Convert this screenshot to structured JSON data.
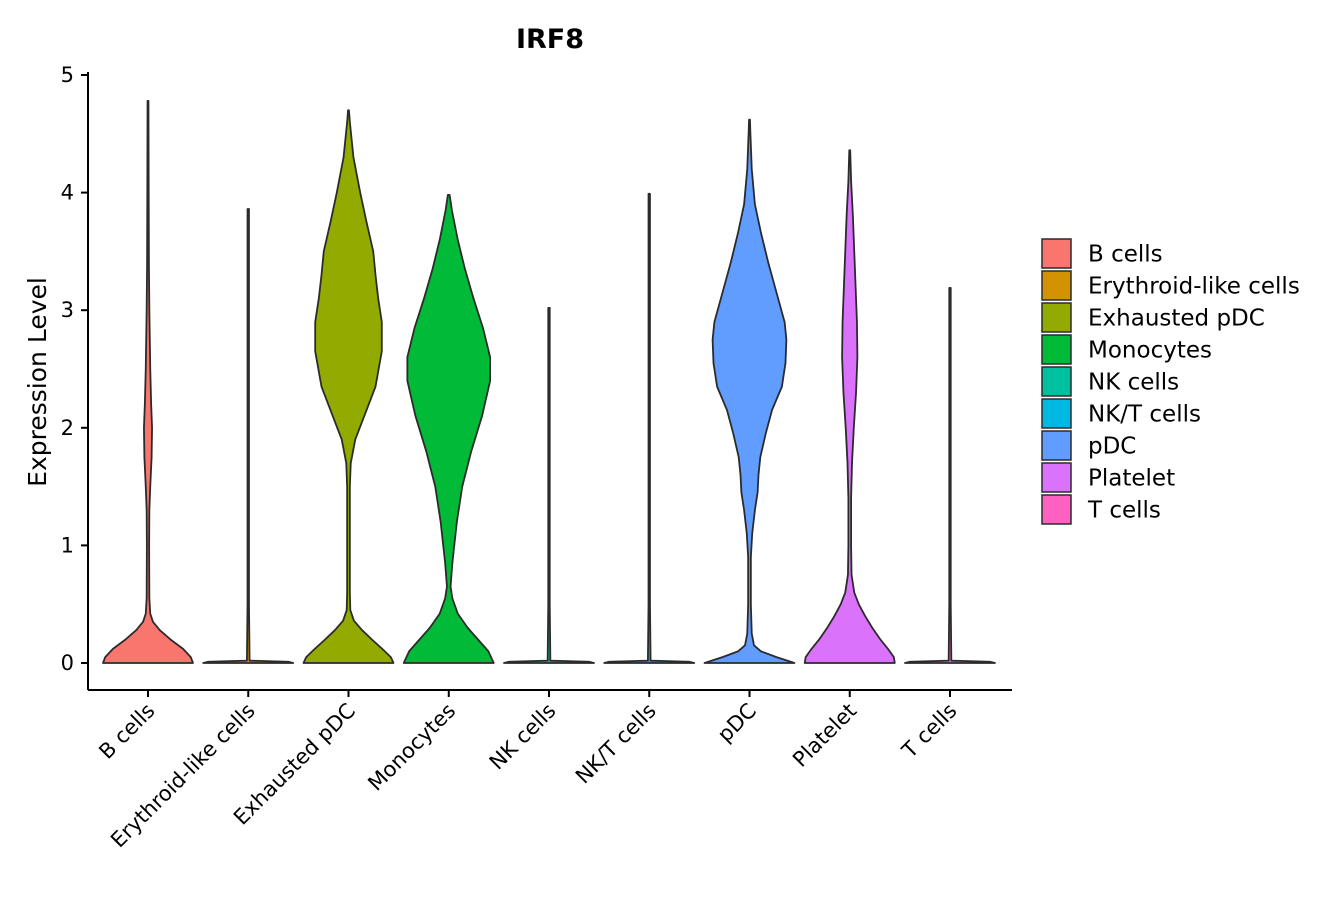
{
  "chart_data": {
    "type": "violin",
    "title": "IRF8",
    "xlabel": "",
    "ylabel": "Expression Level",
    "ylim": [
      0,
      5
    ],
    "yticks": [
      "0",
      "1",
      "2",
      "3",
      "4",
      "5"
    ],
    "categories": [
      "B cells",
      "Erythroid-like cells",
      "Exhausted pDC",
      "Monocytes",
      "NK cells",
      "NK/T cells",
      "pDC",
      "Platelet",
      "T cells"
    ],
    "colors": [
      "#F8766D",
      "#D39200",
      "#93AA00",
      "#00BA38",
      "#00C19F",
      "#00B9E3",
      "#619CFF",
      "#DB72FB",
      "#FF61C3"
    ],
    "legend": {
      "placement": "right",
      "entries": [
        "B cells",
        "Erythroid-like cells",
        "Exhausted pDC",
        "Monocytes",
        "NK cells",
        "NK/T cells",
        "pDC",
        "Platelet",
        "T cells"
      ]
    },
    "violins": [
      {
        "name": "B cells",
        "max": 4.78,
        "profile": [
          [
            0,
            1.0
          ],
          [
            0.05,
            0.95
          ],
          [
            0.12,
            0.78
          ],
          [
            0.2,
            0.5
          ],
          [
            0.28,
            0.26
          ],
          [
            0.35,
            0.11
          ],
          [
            0.42,
            0.05
          ],
          [
            0.55,
            0.03
          ],
          [
            1.0,
            0.025
          ],
          [
            1.3,
            0.03
          ],
          [
            1.5,
            0.05
          ],
          [
            1.75,
            0.08
          ],
          [
            2.0,
            0.09
          ],
          [
            2.2,
            0.07
          ],
          [
            2.5,
            0.05
          ],
          [
            3.0,
            0.03
          ],
          [
            3.4,
            0.02
          ],
          [
            4.0,
            0.015
          ],
          [
            4.78,
            0.01
          ]
        ]
      },
      {
        "name": "Erythroid-like cells",
        "max": 3.86,
        "profile": [
          [
            0,
            1.0
          ],
          [
            0.01,
            0.9
          ],
          [
            0.02,
            0.03
          ],
          [
            0.5,
            0.016
          ],
          [
            2.0,
            0.016
          ],
          [
            3.86,
            0.016
          ]
        ]
      },
      {
        "name": "Exhausted pDC",
        "max": 4.7,
        "profile": [
          [
            0,
            1.0
          ],
          [
            0.05,
            0.94
          ],
          [
            0.12,
            0.75
          ],
          [
            0.2,
            0.52
          ],
          [
            0.28,
            0.3
          ],
          [
            0.36,
            0.12
          ],
          [
            0.45,
            0.04
          ],
          [
            0.6,
            0.03
          ],
          [
            1.5,
            0.03
          ],
          [
            1.7,
            0.05
          ],
          [
            1.9,
            0.15
          ],
          [
            2.1,
            0.35
          ],
          [
            2.35,
            0.6
          ],
          [
            2.65,
            0.74
          ],
          [
            2.9,
            0.74
          ],
          [
            3.1,
            0.66
          ],
          [
            3.3,
            0.6
          ],
          [
            3.5,
            0.55
          ],
          [
            3.75,
            0.4
          ],
          [
            4.0,
            0.26
          ],
          [
            4.3,
            0.11
          ],
          [
            4.6,
            0.03
          ],
          [
            4.7,
            0.01
          ]
        ]
      },
      {
        "name": "Monocytes",
        "max": 3.98,
        "profile": [
          [
            0,
            1.0
          ],
          [
            0.1,
            0.88
          ],
          [
            0.2,
            0.65
          ],
          [
            0.3,
            0.42
          ],
          [
            0.42,
            0.2
          ],
          [
            0.55,
            0.08
          ],
          [
            0.65,
            0.04
          ],
          [
            0.85,
            0.08
          ],
          [
            1.2,
            0.18
          ],
          [
            1.5,
            0.3
          ],
          [
            1.8,
            0.5
          ],
          [
            2.1,
            0.74
          ],
          [
            2.4,
            0.92
          ],
          [
            2.6,
            0.92
          ],
          [
            2.85,
            0.76
          ],
          [
            3.1,
            0.55
          ],
          [
            3.35,
            0.36
          ],
          [
            3.6,
            0.2
          ],
          [
            3.85,
            0.07
          ],
          [
            3.98,
            0.02
          ]
        ]
      },
      {
        "name": "NK cells",
        "max": 3.02,
        "profile": [
          [
            0,
            1.0
          ],
          [
            0.01,
            0.9
          ],
          [
            0.02,
            0.03
          ],
          [
            0.5,
            0.016
          ],
          [
            2.0,
            0.016
          ],
          [
            3.02,
            0.016
          ]
        ]
      },
      {
        "name": "NK/T cells",
        "max": 3.99,
        "profile": [
          [
            0,
            1.0
          ],
          [
            0.01,
            0.9
          ],
          [
            0.02,
            0.03
          ],
          [
            0.5,
            0.016
          ],
          [
            2.0,
            0.016
          ],
          [
            3.99,
            0.016
          ]
        ]
      },
      {
        "name": "pDC",
        "max": 4.62,
        "profile": [
          [
            0,
            1.0
          ],
          [
            0.05,
            0.6
          ],
          [
            0.1,
            0.25
          ],
          [
            0.15,
            0.1
          ],
          [
            0.25,
            0.05
          ],
          [
            0.5,
            0.03
          ],
          [
            0.9,
            0.03
          ],
          [
            1.1,
            0.06
          ],
          [
            1.3,
            0.12
          ],
          [
            1.45,
            0.18
          ],
          [
            1.6,
            0.2
          ],
          [
            1.75,
            0.24
          ],
          [
            1.95,
            0.36
          ],
          [
            2.15,
            0.5
          ],
          [
            2.35,
            0.72
          ],
          [
            2.55,
            0.8
          ],
          [
            2.75,
            0.82
          ],
          [
            2.9,
            0.78
          ],
          [
            3.15,
            0.6
          ],
          [
            3.4,
            0.42
          ],
          [
            3.65,
            0.26
          ],
          [
            3.9,
            0.12
          ],
          [
            4.2,
            0.05
          ],
          [
            4.5,
            0.02
          ],
          [
            4.62,
            0.01
          ]
        ]
      },
      {
        "name": "Platelet",
        "max": 4.36,
        "profile": [
          [
            0,
            1.0
          ],
          [
            0.05,
            0.98
          ],
          [
            0.12,
            0.85
          ],
          [
            0.2,
            0.68
          ],
          [
            0.3,
            0.5
          ],
          [
            0.4,
            0.34
          ],
          [
            0.5,
            0.2
          ],
          [
            0.6,
            0.1
          ],
          [
            0.75,
            0.04
          ],
          [
            1.0,
            0.03
          ],
          [
            1.4,
            0.03
          ],
          [
            1.7,
            0.05
          ],
          [
            2.0,
            0.09
          ],
          [
            2.3,
            0.14
          ],
          [
            2.6,
            0.17
          ],
          [
            2.9,
            0.16
          ],
          [
            3.2,
            0.13
          ],
          [
            3.5,
            0.1
          ],
          [
            3.8,
            0.07
          ],
          [
            4.1,
            0.03
          ],
          [
            4.36,
            0.01
          ]
        ]
      },
      {
        "name": "T cells",
        "max": 3.19,
        "profile": [
          [
            0,
            1.0
          ],
          [
            0.01,
            0.9
          ],
          [
            0.02,
            0.03
          ],
          [
            0.5,
            0.016
          ],
          [
            2.0,
            0.016
          ],
          [
            3.19,
            0.016
          ]
        ]
      }
    ]
  }
}
